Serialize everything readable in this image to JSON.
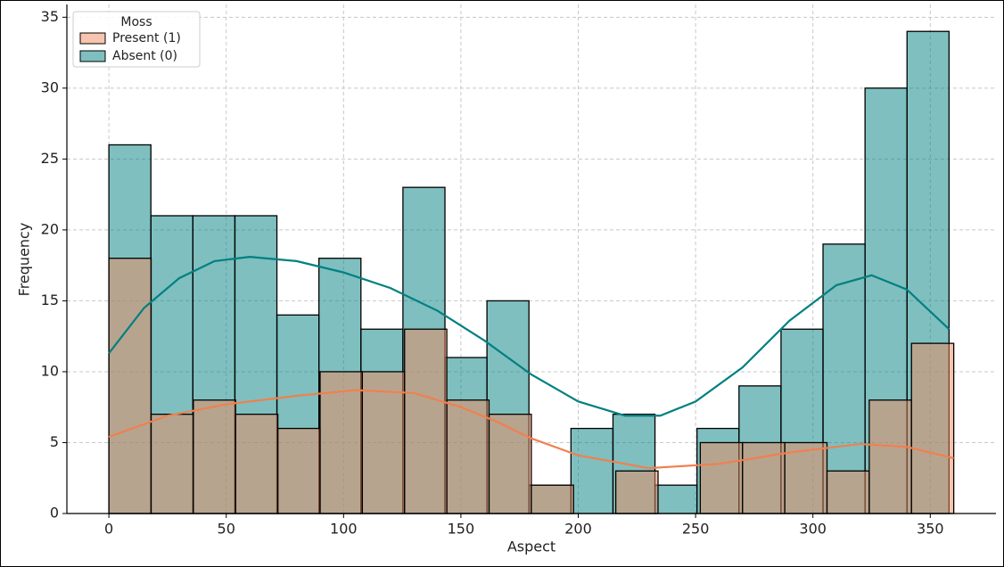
{
  "chart_data": {
    "type": "histogram",
    "x_label": "Aspect",
    "y_label": "Frequency",
    "xlim": [
      -17.9,
      378
    ],
    "ylim": [
      0,
      35.9
    ],
    "xticks": [
      0,
      50,
      100,
      150,
      200,
      250,
      300,
      350
    ],
    "yticks": [
      0,
      5,
      10,
      15,
      20,
      25,
      30,
      35
    ],
    "grid": true,
    "legend_title": "Moss",
    "legend_position": "upper left",
    "series": [
      {
        "name": "Present (1)",
        "color": "#ef8a5f",
        "line_color": "#f0804f",
        "bins": [
          0,
          18,
          36,
          54,
          72,
          90,
          108,
          126,
          144,
          162,
          180,
          198,
          216,
          234,
          252,
          270,
          288,
          306,
          324,
          342,
          360
        ],
        "values": [
          18,
          7,
          8,
          7,
          6,
          10,
          10,
          13,
          8,
          7,
          2,
          0,
          3,
          0,
          5,
          5,
          5,
          3,
          8,
          12
        ],
        "kde": {
          "x": [
            0,
            25,
            50,
            80,
            105,
            130,
            150,
            165,
            180,
            200,
            230,
            260,
            290,
            320,
            340,
            360
          ],
          "y": [
            5.4,
            6.9,
            7.7,
            8.3,
            8.7,
            8.5,
            7.5,
            6.5,
            5.3,
            4.1,
            3.2,
            3.5,
            4.3,
            4.9,
            4.7,
            3.9
          ]
        }
      },
      {
        "name": "Absent (0)",
        "color": "#008080",
        "line_color": "#008080",
        "bins": [
          0,
          17.9,
          35.8,
          53.7,
          71.6,
          89.5,
          107.4,
          125.3,
          143.2,
          161.1,
          179,
          196.9,
          214.8,
          232.7,
          250.6,
          268.5,
          286.4,
          304.3,
          322.2,
          340.1,
          358
        ],
        "values": [
          26,
          21,
          21,
          21,
          14,
          18,
          13,
          23,
          11,
          15,
          2,
          6,
          7,
          2,
          6,
          9,
          13,
          19,
          30,
          34
        ],
        "kde": {
          "x": [
            0,
            15,
            30,
            45,
            60,
            80,
            100,
            120,
            140,
            160,
            180,
            200,
            220,
            235,
            250,
            270,
            290,
            310,
            325,
            340,
            358
          ],
          "y": [
            11.3,
            14.5,
            16.6,
            17.8,
            18.1,
            17.8,
            17,
            15.9,
            14.3,
            12.2,
            9.8,
            7.9,
            6.9,
            6.9,
            7.9,
            10.3,
            13.6,
            16.1,
            16.8,
            15.8,
            13
          ]
        }
      }
    ]
  }
}
